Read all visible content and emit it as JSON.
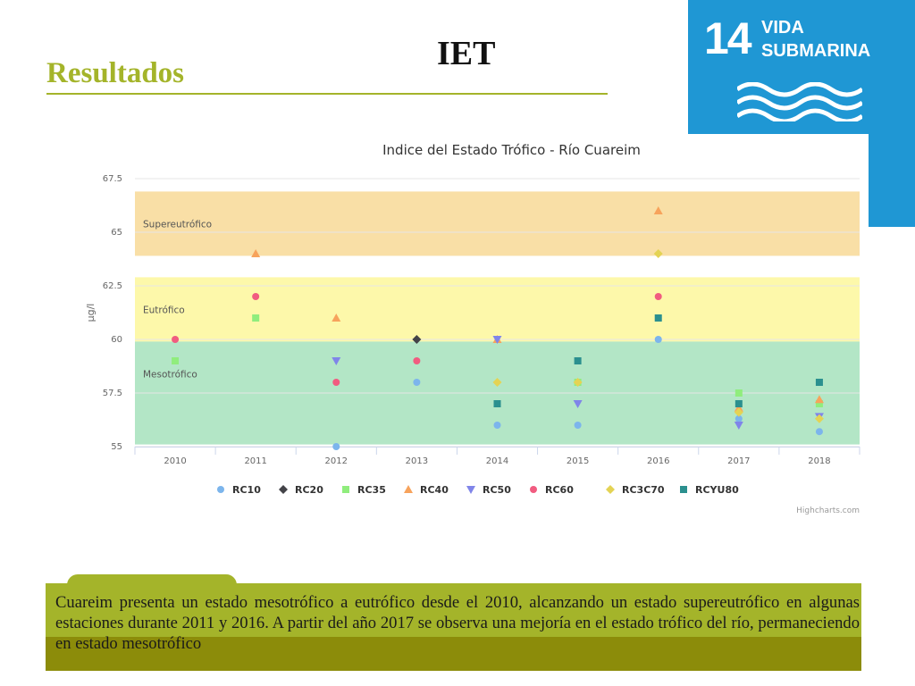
{
  "slide": {
    "title": "Resultados",
    "heading": "IET",
    "sdg": {
      "number": "14",
      "label_line1": "VIDA",
      "label_line2": "SUBMARINA",
      "color": "#1f97d4"
    },
    "summary": "Cuareim presenta un estado mesotrófico a eutrófico desde el 2010, alcanzando un estado supereutrófico en algunas estaciones durante 2011 y 2016. A partir del año 2017 se observa una mejoría en el estado trófico del río, permaneciendo en estado mesotrófico",
    "accent_color": "#a4b42a"
  },
  "chart_data": {
    "type": "scatter",
    "title": "Indice del Estado Trófico - Río Cuareim",
    "ylabel": "µg/l",
    "xlabel": "",
    "categories": [
      "2010",
      "2011",
      "2012",
      "2013",
      "2014",
      "2015",
      "2016",
      "2017",
      "2018"
    ],
    "ylim": [
      55,
      67.5
    ],
    "yticks": [
      "55",
      "57.5",
      "60",
      "62.5",
      "65",
      "67.5"
    ],
    "grid": true,
    "legend_position": "bottom",
    "credits": "Highcharts.com",
    "bands": [
      {
        "label": "Supereutrófico",
        "from": 63.9,
        "to": 66.9,
        "color": "#f9dfa6"
      },
      {
        "label": "Eutrófico",
        "from": 59.9,
        "to": 62.9,
        "color": "#fdf8aa"
      },
      {
        "label": "Mesotrófico",
        "from": 55.1,
        "to": 59.9,
        "color": "#b3e6c6"
      }
    ],
    "series": [
      {
        "name": "RC10",
        "symbol": "circle",
        "color": "#7cb5ec",
        "values": [
          null,
          null,
          55,
          58,
          56,
          56,
          60,
          56.3,
          55.7
        ]
      },
      {
        "name": "RC20",
        "symbol": "diamond",
        "color": "#434348",
        "values": [
          null,
          null,
          null,
          60,
          null,
          null,
          null,
          null,
          null
        ]
      },
      {
        "name": "RC35",
        "symbol": "square",
        "color": "#90ed7d",
        "values": [
          59,
          61,
          null,
          null,
          null,
          58,
          null,
          57.5,
          57
        ]
      },
      {
        "name": "RC40",
        "symbol": "triangle",
        "color": "#f7a35c",
        "values": [
          null,
          64,
          61,
          null,
          60,
          null,
          66,
          56.8,
          57.2
        ]
      },
      {
        "name": "RC50",
        "symbol": "triangle-down",
        "color": "#8085e9",
        "values": [
          null,
          null,
          59,
          null,
          60,
          57,
          null,
          56,
          56.4
        ]
      },
      {
        "name": "RC60",
        "symbol": "circle",
        "color": "#f15c80",
        "values": [
          60,
          62,
          58,
          59,
          null,
          null,
          62,
          null,
          null
        ]
      },
      {
        "name": "RC3C70",
        "symbol": "diamond",
        "color": "#e4d354",
        "values": [
          null,
          null,
          null,
          null,
          58,
          58,
          64,
          56.6,
          56.3
        ]
      },
      {
        "name": "RCYU80",
        "symbol": "square",
        "color": "#2b908f",
        "values": [
          null,
          null,
          null,
          null,
          57,
          59,
          61,
          57,
          58
        ]
      }
    ]
  }
}
